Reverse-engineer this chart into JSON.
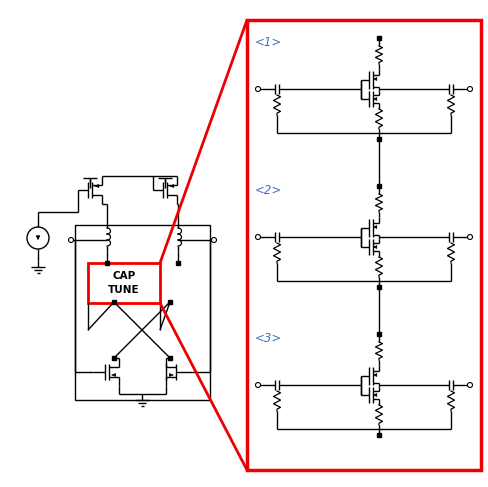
{
  "bg_color": "#ffffff",
  "red_color": "#ee0000",
  "black_color": "#000000",
  "blue_label_color": "#4472c4",
  "fig_width": 4.89,
  "fig_height": 4.87,
  "dpi": 100,
  "labels": [
    "<1>",
    "<2>",
    "<3>"
  ]
}
